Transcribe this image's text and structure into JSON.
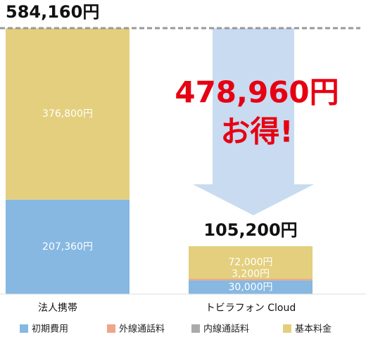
{
  "chart_data": {
    "type": "stacked-bar",
    "categories": [
      "法人携帯",
      "トビラフォン Cloud"
    ],
    "series": [
      {
        "name": "初期費用",
        "color": "#86b8e2",
        "values": [
          207360,
          30000
        ],
        "value_labels": [
          "207,360円",
          "30,000円"
        ]
      },
      {
        "name": "外線通話料",
        "color": "#eea58b",
        "values": [
          0,
          3200
        ],
        "value_labels": [
          null,
          "3,200円"
        ]
      },
      {
        "name": "内線通話料",
        "color": "#aaaaaa",
        "values": [
          0,
          0
        ],
        "value_labels": [
          null,
          null
        ]
      },
      {
        "name": "基本料金",
        "color": "#e3cf7d",
        "values": [
          376800,
          72000
        ],
        "value_labels": [
          "376,800円",
          "72,000円"
        ]
      }
    ],
    "totals": [
      584160,
      105200
    ],
    "total_labels": [
      "584,160円",
      "105,200円"
    ],
    "annotations": [
      "478,960円",
      "お得!"
    ],
    "ylim": [
      0,
      584160
    ]
  }
}
